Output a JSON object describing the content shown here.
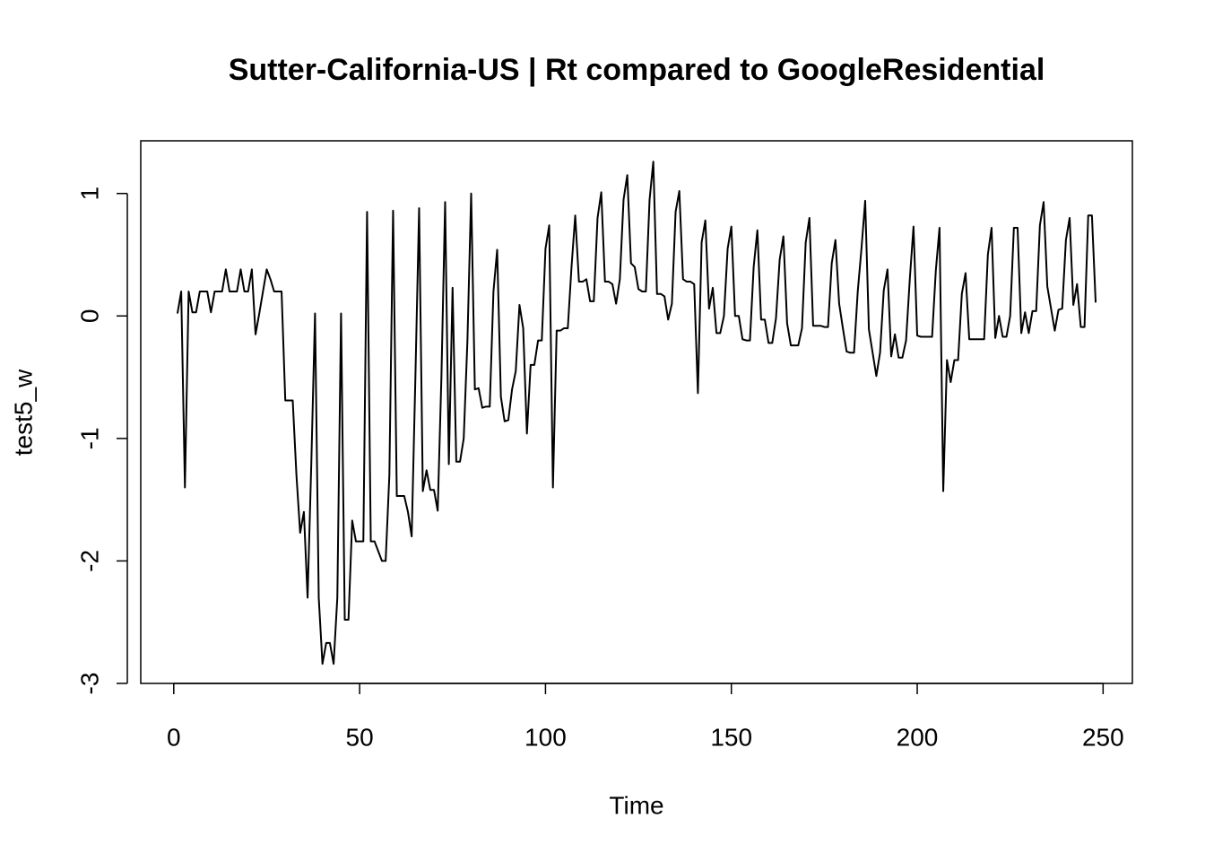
{
  "chart_data": {
    "type": "line",
    "title": "Sutter-California-US | Rt compared to GoogleResidential",
    "xlabel": "Time",
    "ylabel": "test5_w",
    "x": [
      1,
      2,
      3,
      4,
      5,
      6,
      7,
      8,
      9,
      10,
      11,
      12,
      13,
      14,
      15,
      16,
      17,
      18,
      19,
      20,
      21,
      22,
      23,
      24,
      25,
      26,
      27,
      28,
      29,
      30,
      31,
      32,
      33,
      34,
      35,
      36,
      37,
      38,
      39,
      40,
      41,
      42,
      43,
      44,
      45,
      46,
      47,
      48,
      49,
      50,
      51,
      52,
      53,
      54,
      55,
      56,
      57,
      58,
      59,
      60,
      61,
      62,
      63,
      64,
      65,
      66,
      67,
      68,
      69,
      70,
      71,
      72,
      73,
      74,
      75,
      76,
      77,
      78,
      79,
      80,
      81,
      82,
      83,
      84,
      85,
      86,
      87,
      88,
      89,
      90,
      91,
      92,
      93,
      94,
      95,
      96,
      97,
      98,
      99,
      100,
      101,
      102,
      103,
      104,
      105,
      106,
      107,
      108,
      109,
      110,
      111,
      112,
      113,
      114,
      115,
      116,
      117,
      118,
      119,
      120,
      121,
      122,
      123,
      124,
      125,
      126,
      127,
      128,
      129,
      130,
      131,
      132,
      133,
      134,
      135,
      136,
      137,
      138,
      139,
      140,
      141,
      142,
      143,
      144,
      145,
      146,
      147,
      148,
      149,
      150,
      151,
      152,
      153,
      154,
      155,
      156,
      157,
      158,
      159,
      160,
      161,
      162,
      163,
      164,
      165,
      166,
      167,
      168,
      169,
      170,
      171,
      172,
      173,
      174,
      175,
      176,
      177,
      178,
      179,
      180,
      181,
      182,
      183,
      184,
      185,
      186,
      187,
      188,
      189,
      190,
      191,
      192,
      193,
      194,
      195,
      196,
      197,
      198,
      199,
      200,
      201,
      202,
      203,
      204,
      205,
      206,
      207,
      208,
      209,
      210,
      211,
      212,
      213,
      214,
      215,
      216,
      217,
      218,
      219,
      220,
      221,
      222,
      223,
      224,
      225,
      226,
      227,
      228,
      229,
      230,
      231,
      232,
      233,
      234,
      235,
      236,
      237,
      238,
      239,
      240,
      241,
      242,
      243,
      244,
      245,
      246,
      247,
      248
    ],
    "series": [
      {
        "name": "test5_w",
        "color": "#000000",
        "values": [
          0.02,
          0.2,
          -1.4,
          0.2,
          0.03,
          0.03,
          0.2,
          0.2,
          0.2,
          0.03,
          0.2,
          0.2,
          0.2,
          0.38,
          0.2,
          0.2,
          0.2,
          0.38,
          0.2,
          0.2,
          0.38,
          -0.15,
          0.02,
          0.2,
          0.38,
          0.3,
          0.2,
          0.2,
          0.2,
          -0.69,
          -0.69,
          -0.69,
          -1.3,
          -1.77,
          -1.6,
          -2.3,
          -1.2,
          0.02,
          -2.3,
          -2.84,
          -2.67,
          -2.67,
          -2.84,
          -2.3,
          0.02,
          -2.48,
          -2.48,
          -1.67,
          -1.84,
          -1.84,
          -1.84,
          0.85,
          -1.84,
          -1.84,
          -1.92,
          -2.0,
          -2.0,
          -1.3,
          0.86,
          -1.47,
          -1.47,
          -1.47,
          -1.6,
          -1.8,
          -0.5,
          0.88,
          -1.43,
          -1.26,
          -1.42,
          -1.42,
          -1.59,
          -0.5,
          0.93,
          -1.21,
          0.23,
          -1.19,
          -1.19,
          -1.0,
          -0.2,
          1.0,
          -0.6,
          -0.59,
          -0.75,
          -0.74,
          -0.74,
          0.2,
          0.54,
          -0.66,
          -0.86,
          -0.85,
          -0.6,
          -0.45,
          0.09,
          -0.1,
          -0.96,
          -0.4,
          -0.4,
          -0.2,
          -0.2,
          0.55,
          0.74,
          -1.4,
          -0.12,
          -0.12,
          -0.1,
          -0.1,
          0.4,
          0.82,
          0.28,
          0.28,
          0.3,
          0.12,
          0.12,
          0.8,
          1.01,
          0.28,
          0.28,
          0.26,
          0.1,
          0.3,
          0.95,
          1.15,
          0.43,
          0.4,
          0.22,
          0.2,
          0.2,
          0.95,
          1.26,
          0.18,
          0.18,
          0.16,
          -0.03,
          0.1,
          0.85,
          1.02,
          0.3,
          0.28,
          0.28,
          0.26,
          -0.63,
          0.6,
          0.78,
          0.06,
          0.23,
          -0.14,
          -0.14,
          0.0,
          0.55,
          0.73,
          0.0,
          0.0,
          -0.19,
          -0.2,
          -0.2,
          0.4,
          0.7,
          -0.03,
          -0.03,
          -0.22,
          -0.22,
          -0.02,
          0.46,
          0.65,
          -0.06,
          -0.24,
          -0.24,
          -0.24,
          -0.1,
          0.6,
          0.8,
          -0.08,
          -0.08,
          -0.08,
          -0.09,
          -0.09,
          0.43,
          0.62,
          0.1,
          -0.1,
          -0.29,
          -0.3,
          -0.3,
          0.2,
          0.55,
          0.94,
          -0.11,
          -0.3,
          -0.49,
          -0.3,
          0.21,
          0.38,
          -0.33,
          -0.15,
          -0.34,
          -0.34,
          -0.2,
          0.3,
          0.73,
          -0.16,
          -0.17,
          -0.17,
          -0.17,
          -0.17,
          0.37,
          0.72,
          -1.43,
          -0.36,
          -0.54,
          -0.36,
          -0.36,
          0.18,
          0.35,
          -0.19,
          -0.19,
          -0.19,
          -0.19,
          -0.19,
          0.5,
          0.72,
          -0.18,
          0.0,
          -0.17,
          -0.17,
          0.0,
          0.72,
          0.72,
          -0.14,
          0.03,
          -0.14,
          0.04,
          0.04,
          0.74,
          0.93,
          0.24,
          0.06,
          -0.12,
          0.05,
          0.06,
          0.62,
          0.8,
          0.09,
          0.26,
          -0.09,
          -0.09,
          0.82,
          0.82,
          0.11
        ]
      }
    ],
    "xlim": [
      -8.88,
      257.88
    ],
    "ylim": [
      -3.0,
      1.43
    ],
    "xticks": [
      0,
      50,
      100,
      150,
      200,
      250
    ],
    "yticks": [
      -3,
      -2,
      -1,
      0,
      1
    ]
  }
}
